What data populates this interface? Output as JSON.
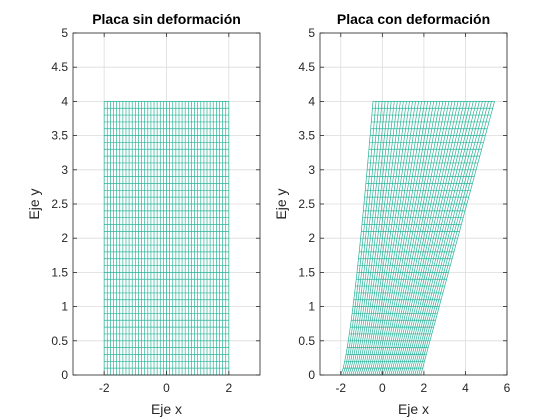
{
  "colors": {
    "mesh": "#2bb39a",
    "grid": "#dcdcdc",
    "axis": "#262626",
    "background": "#ffffff"
  },
  "chart_data": [
    {
      "type": "mesh",
      "title": "Placa sin deformación",
      "xlabel": "Eje x",
      "ylabel": "Eje y",
      "xlim": [
        -3,
        3
      ],
      "ylim": [
        0,
        5
      ],
      "xticks": [
        -2,
        0,
        2
      ],
      "xtick_labels": [
        "-2",
        "0",
        "2"
      ],
      "yticks": [
        0,
        0.5,
        1,
        1.5,
        2,
        2.5,
        3,
        3.5,
        4,
        4.5,
        5
      ],
      "ytick_labels": [
        "0",
        "0.5",
        "1",
        "1.5",
        "2",
        "2.5",
        "3",
        "3.5",
        "4",
        "4.5",
        "5"
      ],
      "grid": true,
      "mesh": {
        "x_range": [
          -2,
          2
        ],
        "y_range": [
          0,
          4
        ],
        "nx": 40,
        "ny": 40,
        "deformed": false
      }
    },
    {
      "type": "mesh",
      "title": "Placa con deformación",
      "xlabel": "Eje x",
      "ylabel": "Eje y",
      "xlim": [
        -3,
        6
      ],
      "ylim": [
        0,
        5
      ],
      "xticks": [
        -2,
        0,
        2,
        4,
        6
      ],
      "xtick_labels": [
        "-2",
        "0",
        "2",
        "4",
        "6"
      ],
      "yticks": [
        0,
        0.5,
        1,
        1.5,
        2,
        2.5,
        3,
        3.5,
        4,
        4.5,
        5
      ],
      "ytick_labels": [
        "0",
        "0.5",
        "1",
        "1.5",
        "2",
        "2.5",
        "3",
        "3.5",
        "4",
        "4.5",
        "5"
      ],
      "grid": true,
      "mesh": {
        "x_range": [
          -2,
          2
        ],
        "y_range": [
          0,
          4
        ],
        "nx": 40,
        "ny": 40,
        "deformed": true,
        "corners": {
          "bottom_left": [
            -2,
            0
          ],
          "bottom_right": [
            1.85,
            0
          ],
          "top_left": [
            -0.45,
            4
          ],
          "top_right": [
            5.4,
            4
          ]
        },
        "left_edge_curvature": 0.7
      }
    }
  ]
}
